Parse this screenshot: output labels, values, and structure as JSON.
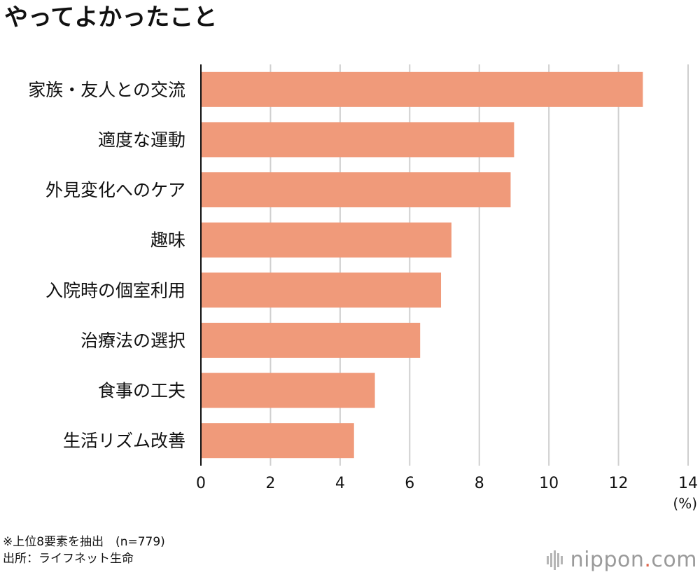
{
  "title": "やってよかったこと",
  "chart_data": {
    "type": "bar",
    "orientation": "horizontal",
    "categories": [
      "家族・友人との交流",
      "適度な運動",
      "外見変化へのケア",
      "趣味",
      "入院時の個室利用",
      "治療法の選択",
      "食事の工夫",
      "生活リズム改善"
    ],
    "values": [
      12.7,
      9.0,
      8.9,
      7.2,
      6.9,
      6.3,
      5.0,
      4.4
    ],
    "xlim": [
      0,
      14
    ],
    "xticks": [
      "0",
      "2",
      "4",
      "6",
      "8",
      "10",
      "12",
      "14"
    ],
    "xtick_values": [
      0,
      2,
      4,
      6,
      8,
      10,
      12,
      14
    ],
    "unit_label": "(%)",
    "bar_color": "#f09a7a",
    "grid": true
  },
  "notes": {
    "line1": "※上位8要素を抽出　(n=779)",
    "line2": "出所：ライフネット生命"
  },
  "logo": {
    "text": "nippon",
    "dot": ".",
    "suffix": "com",
    "accent": "#e0644a"
  }
}
